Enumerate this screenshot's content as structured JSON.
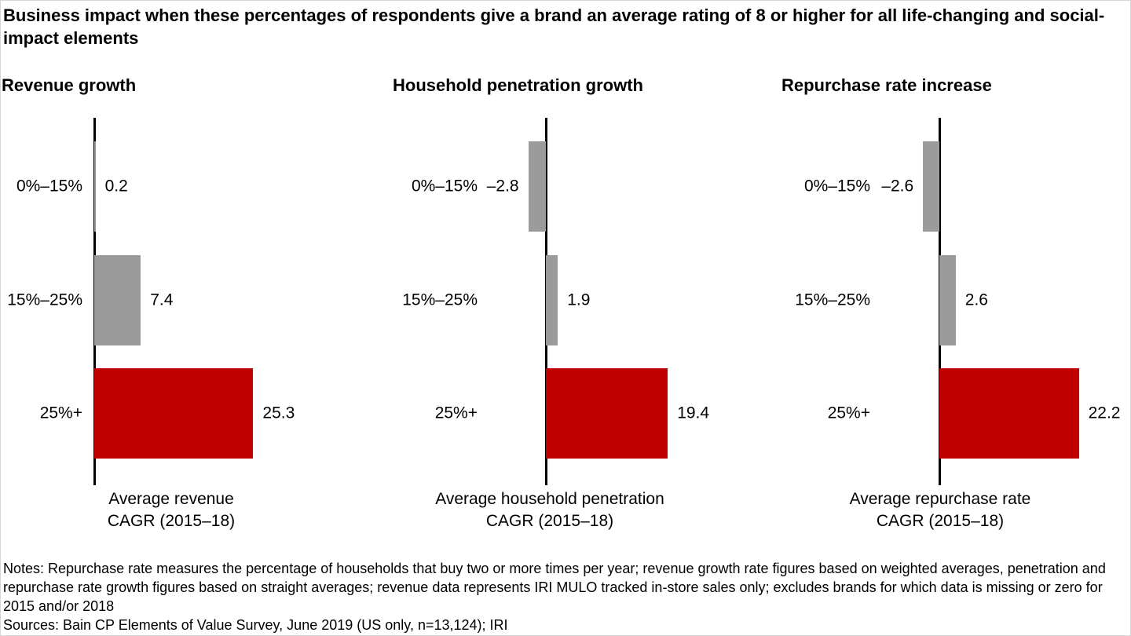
{
  "title": "Business impact when these percentages of respondents give a brand an average rating of 8 or higher for all life-changing and social-impact elements",
  "colors": {
    "bar_gray": "#9b9b9b",
    "bar_red": "#c00000",
    "axis_line": "#000000",
    "text": "#000000",
    "background": "#ffffff"
  },
  "chart_data": [
    {
      "type": "bar",
      "orientation": "horizontal",
      "title": "Revenue growth",
      "categories": [
        "0%–15%",
        "15%–25%",
        "25%+"
      ],
      "values": [
        0.2,
        7.4,
        25.3
      ],
      "value_labels": [
        "0.2",
        "7.4",
        "25.3"
      ],
      "bar_colors": [
        "gray",
        "gray",
        "red"
      ],
      "xlabel_lines": [
        "Average revenue",
        "CAGR (2015–18)"
      ],
      "xlim": [
        -6,
        28
      ],
      "grid": false,
      "legend": "none"
    },
    {
      "type": "bar",
      "orientation": "horizontal",
      "title": "Household penetration growth",
      "categories": [
        "0%–15%",
        "15%–25%",
        "25%+"
      ],
      "values": [
        -2.8,
        1.9,
        19.4
      ],
      "value_labels": [
        "–2.8",
        "1.9",
        "19.4"
      ],
      "bar_colors": [
        "gray",
        "gray",
        "red"
      ],
      "xlabel_lines": [
        "Average household penetration",
        "CAGR (2015–18)"
      ],
      "xlim": [
        -6,
        28
      ],
      "grid": false,
      "legend": "none"
    },
    {
      "type": "bar",
      "orientation": "horizontal",
      "title": "Repurchase rate increase",
      "categories": [
        "0%–15%",
        "15%–25%",
        "25%+"
      ],
      "values": [
        -2.6,
        2.6,
        22.2
      ],
      "value_labels": [
        "–2.6",
        "2.6",
        "22.2"
      ],
      "bar_colors": [
        "gray",
        "gray",
        "red"
      ],
      "xlabel_lines": [
        "Average repurchase rate",
        "CAGR (2015–18)"
      ],
      "xlim": [
        -6,
        28
      ],
      "grid": false,
      "legend": "none"
    }
  ],
  "notes": "Notes: Repurchase rate measures the percentage of households that buy two or more times per year; revenue growth rate figures based on weighted averages, penetration and repurchase rate growth figures based on straight averages; revenue data represents IRI MULO tracked in-store sales only; excludes brands for which data is missing or zero for 2015 and/or 2018",
  "sources": "Sources: Bain CP Elements of Value Survey, June 2019 (US only, n=13,124); IRI"
}
